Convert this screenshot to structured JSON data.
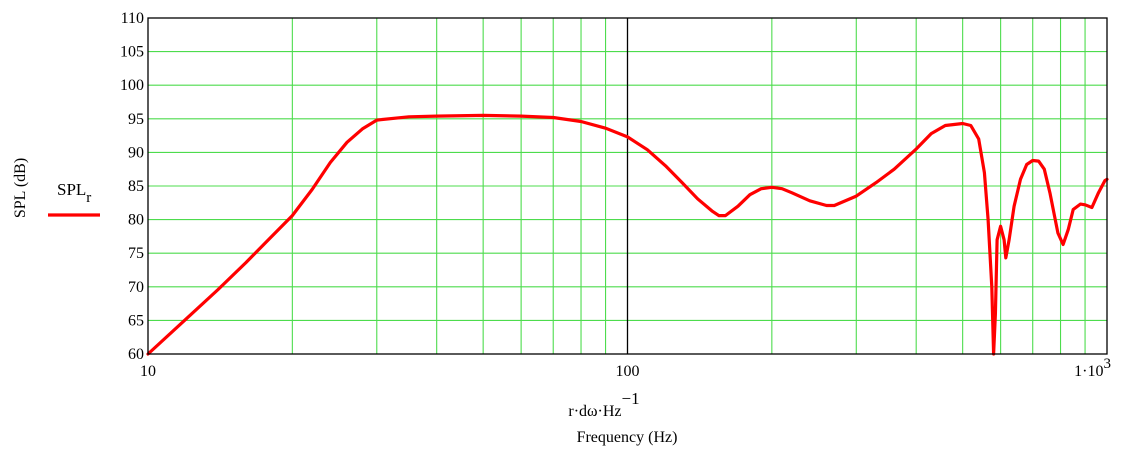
{
  "chart_data": {
    "type": "line",
    "title": "",
    "xlabel_expr": {
      "base": "r·dω·Hz",
      "sup": "−1"
    },
    "xlabel": "Frequency (Hz)",
    "ylabel": "SPL (dB)",
    "xscale": "log",
    "xlim": [
      10,
      1000
    ],
    "ylim": [
      60,
      110
    ],
    "grid": true,
    "legend_placement": "left",
    "x_tick_labels": [
      {
        "value": 10,
        "label": "10"
      },
      {
        "value": 100,
        "label": "100"
      },
      {
        "value": 1000,
        "label": "1·10",
        "sup": "3"
      }
    ],
    "y_ticks": [
      60,
      65,
      70,
      75,
      80,
      85,
      90,
      95,
      100,
      105,
      110
    ],
    "series": [
      {
        "name": "SPL",
        "name_sub": "r",
        "color": "#ff0000",
        "x": [
          10,
          12,
          14,
          16,
          18,
          20,
          22,
          24,
          26,
          28,
          30,
          35,
          40,
          50,
          60,
          70,
          80,
          90,
          100,
          110,
          120,
          130,
          140,
          150,
          155,
          160,
          170,
          180,
          190,
          200,
          210,
          220,
          240,
          260,
          270,
          300,
          330,
          360,
          400,
          430,
          460,
          500,
          520,
          540,
          555,
          565,
          575,
          580,
          585,
          590,
          600,
          610,
          615,
          625,
          640,
          660,
          680,
          700,
          720,
          740,
          760,
          790,
          810,
          830,
          850,
          880,
          900,
          930,
          960,
          990,
          1000
        ],
        "y": [
          60,
          65.2,
          69.6,
          73.6,
          77.3,
          80.6,
          84.5,
          88.5,
          91.5,
          93.5,
          94.8,
          95.3,
          95.4,
          95.5,
          95.4,
          95.2,
          94.6,
          93.6,
          92.3,
          90.4,
          88,
          85.5,
          83.1,
          81.3,
          80.6,
          80.6,
          82,
          83.7,
          84.6,
          84.8,
          84.6,
          84,
          82.8,
          82.1,
          82.1,
          83.5,
          85.5,
          87.5,
          90.5,
          92.8,
          94,
          94.3,
          94,
          92,
          87,
          80,
          70,
          60,
          66,
          77,
          79,
          77,
          74.3,
          77,
          82,
          86,
          88.2,
          88.8,
          88.7,
          87.5,
          84,
          78,
          76.3,
          78.5,
          81.5,
          82.3,
          82.2,
          81.8,
          84,
          85.8,
          86
        ]
      }
    ]
  }
}
